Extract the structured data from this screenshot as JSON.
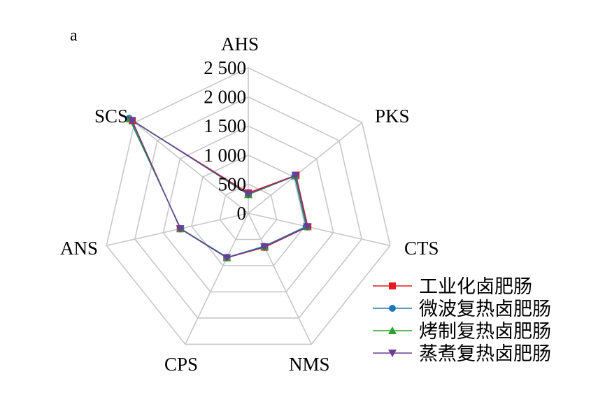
{
  "chart_data": {
    "type": "radar",
    "panel_label": "a",
    "axes": [
      "AHS",
      "PKS",
      "CTS",
      "NMS",
      "CPS",
      "ANS",
      "SCS"
    ],
    "rlim": [
      0,
      2500
    ],
    "ticks": [
      0,
      500,
      1000,
      1500,
      2000,
      2500
    ],
    "tick_labels": [
      "0",
      "500",
      "1 000",
      "1 500",
      "2 000",
      "2 500"
    ],
    "grid": true,
    "legend_position": "bottom-right",
    "series": [
      {
        "name": "工业化卤肥肠",
        "marker": "square",
        "color": "#e41a1c",
        "values": [
          350,
          1050,
          1050,
          650,
          850,
          1200,
          2550
        ]
      },
      {
        "name": "微波复热卤肥肠",
        "marker": "circle",
        "color": "#1f77b4",
        "values": [
          330,
          1020,
          1020,
          630,
          840,
          1190,
          2620
        ]
      },
      {
        "name": "烤制复热卤肥肠",
        "marker": "triangle-up",
        "color": "#2ca02c",
        "values": [
          320,
          1030,
          1030,
          640,
          845,
          1195,
          2600
        ]
      },
      {
        "name": "蒸煮复热卤肥肠",
        "marker": "triangle-down",
        "color": "#6a3d9a",
        "values": [
          330,
          1040,
          1040,
          640,
          850,
          1200,
          2560
        ]
      }
    ]
  }
}
